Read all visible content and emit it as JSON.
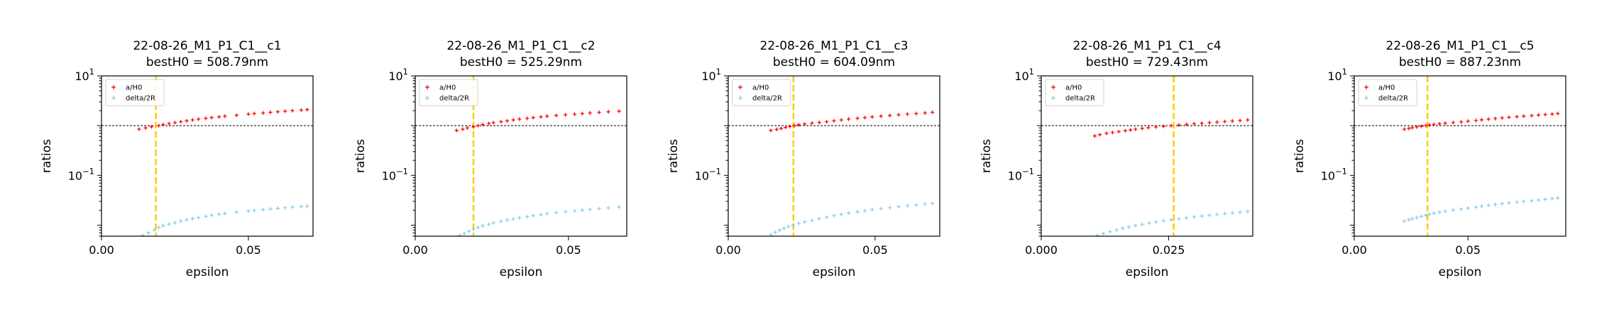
{
  "chart_data": [
    {
      "type": "scatter",
      "title": "22-08-26_M1_P1_C1__c1",
      "subtitle": "bestH0 = 508.79nm",
      "xlabel": "epsilon",
      "ylabel": "ratios",
      "yscale": "log",
      "xlim": [
        0.0,
        0.072
      ],
      "ylim": [
        0.006,
        10
      ],
      "xticks": [
        0.0,
        0.05
      ],
      "xtick_labels": [
        "0.00",
        "0.05"
      ],
      "ytick_labels": [
        {
          "base": "10",
          "exp": "1",
          "value": 10
        },
        {
          "base": "10",
          "exp": "−1",
          "value": 0.1
        }
      ],
      "hline": 1.0,
      "vline": 0.0185,
      "legend": {
        "position": "top-left",
        "entries": [
          "a/H0",
          "delta/2R"
        ]
      },
      "series": [
        {
          "name": "a/H0",
          "color": "#ff0000",
          "marker": "+",
          "x": [
            0.0128,
            0.015,
            0.017,
            0.0195,
            0.021,
            0.023,
            0.025,
            0.027,
            0.029,
            0.031,
            0.033,
            0.0355,
            0.0375,
            0.04,
            0.042,
            0.046,
            0.05,
            0.052,
            0.055,
            0.0575,
            0.06,
            0.0625,
            0.065,
            0.068,
            0.07
          ],
          "y": [
            0.85,
            0.9,
            0.95,
            1.0,
            1.05,
            1.1,
            1.15,
            1.2,
            1.25,
            1.3,
            1.35,
            1.4,
            1.45,
            1.5,
            1.55,
            1.62,
            1.7,
            1.75,
            1.8,
            1.85,
            1.9,
            1.95,
            2.0,
            2.05,
            2.1
          ]
        },
        {
          "name": "delta/2R",
          "color": "#87ceeb",
          "marker": "+",
          "x": [
            0.014,
            0.016,
            0.018,
            0.0195,
            0.021,
            0.023,
            0.025,
            0.027,
            0.029,
            0.031,
            0.033,
            0.0355,
            0.0375,
            0.04,
            0.042,
            0.046,
            0.05,
            0.052,
            0.055,
            0.0575,
            0.06,
            0.0625,
            0.065,
            0.068,
            0.07
          ],
          "y": [
            0.0062,
            0.007,
            0.008,
            0.009,
            0.0098,
            0.0105,
            0.0112,
            0.012,
            0.0128,
            0.0135,
            0.0142,
            0.015,
            0.0158,
            0.0165,
            0.0172,
            0.0182,
            0.0192,
            0.0198,
            0.0205,
            0.0212,
            0.0218,
            0.0224,
            0.023,
            0.0236,
            0.024
          ]
        }
      ]
    },
    {
      "type": "scatter",
      "title": "22-08-26_M1_P1_C1__c2",
      "subtitle": "bestH0 = 525.29nm",
      "xlabel": "epsilon",
      "ylabel": "ratios",
      "yscale": "log",
      "xlim": [
        0.0,
        0.069
      ],
      "ylim": [
        0.006,
        10
      ],
      "xticks": [
        0.0,
        0.05
      ],
      "xtick_labels": [
        "0.00",
        "0.05"
      ],
      "ytick_labels": [
        {
          "base": "10",
          "exp": "1",
          "value": 10
        },
        {
          "base": "10",
          "exp": "−1",
          "value": 0.1
        }
      ],
      "hline": 1.0,
      "vline": 0.019,
      "legend": {
        "position": "top-left",
        "entries": [
          "a/H0",
          "delta/2R"
        ]
      },
      "series": [
        {
          "name": "a/H0",
          "color": "#ff0000",
          "marker": "+",
          "x": [
            0.0135,
            0.0155,
            0.017,
            0.019,
            0.0205,
            0.022,
            0.024,
            0.0255,
            0.028,
            0.03,
            0.032,
            0.034,
            0.0365,
            0.0385,
            0.041,
            0.043,
            0.046,
            0.049,
            0.052,
            0.0545,
            0.057,
            0.06,
            0.063,
            0.0665
          ],
          "y": [
            0.8,
            0.85,
            0.9,
            0.95,
            1.0,
            1.05,
            1.1,
            1.15,
            1.2,
            1.25,
            1.3,
            1.35,
            1.4,
            1.45,
            1.5,
            1.55,
            1.6,
            1.65,
            1.7,
            1.75,
            1.8,
            1.85,
            1.9,
            1.95
          ]
        },
        {
          "name": "delta/2R",
          "color": "#87ceeb",
          "marker": "+",
          "x": [
            0.0145,
            0.016,
            0.0175,
            0.019,
            0.0205,
            0.022,
            0.024,
            0.0255,
            0.028,
            0.03,
            0.032,
            0.034,
            0.0365,
            0.0385,
            0.041,
            0.043,
            0.046,
            0.049,
            0.052,
            0.0545,
            0.057,
            0.06,
            0.063,
            0.0665
          ],
          "y": [
            0.0062,
            0.0068,
            0.0075,
            0.0083,
            0.009,
            0.0097,
            0.0104,
            0.0111,
            0.0119,
            0.0126,
            0.0133,
            0.014,
            0.0148,
            0.0155,
            0.0162,
            0.017,
            0.0178,
            0.0186,
            0.0194,
            0.02,
            0.0207,
            0.0214,
            0.0222,
            0.023
          ]
        }
      ]
    },
    {
      "type": "scatter",
      "title": "22-08-26_M1_P1_C1__c3",
      "subtitle": "bestH0 = 604.09nm",
      "xlabel": "epsilon",
      "ylabel": "ratios",
      "yscale": "log",
      "xlim": [
        0.0,
        0.072
      ],
      "ylim": [
        0.006,
        10
      ],
      "xticks": [
        0.0,
        0.05
      ],
      "xtick_labels": [
        "0.00",
        "0.05"
      ],
      "ytick_labels": [
        {
          "base": "10",
          "exp": "1",
          "value": 10
        },
        {
          "base": "10",
          "exp": "−1",
          "value": 0.1
        }
      ],
      "hline": 1.0,
      "vline": 0.0222,
      "legend": {
        "position": "top-left",
        "entries": [
          "a/H0",
          "delta/2R"
        ]
      },
      "series": [
        {
          "name": "a/H0",
          "color": "#ff0000",
          "marker": "+",
          "x": [
            0.0145,
            0.0165,
            0.018,
            0.0195,
            0.021,
            0.0225,
            0.024,
            0.026,
            0.0285,
            0.031,
            0.0335,
            0.036,
            0.0385,
            0.041,
            0.044,
            0.0465,
            0.049,
            0.052,
            0.055,
            0.058,
            0.061,
            0.064,
            0.067,
            0.0695
          ],
          "y": [
            0.8,
            0.84,
            0.88,
            0.92,
            0.96,
            1.0,
            1.04,
            1.08,
            1.12,
            1.16,
            1.2,
            1.25,
            1.3,
            1.35,
            1.4,
            1.45,
            1.5,
            1.55,
            1.6,
            1.65,
            1.7,
            1.75,
            1.8,
            1.85
          ]
        },
        {
          "name": "delta/2R",
          "color": "#87ceeb",
          "marker": "+",
          "x": [
            0.0145,
            0.016,
            0.0175,
            0.019,
            0.0205,
            0.022,
            0.024,
            0.026,
            0.0285,
            0.031,
            0.0335,
            0.036,
            0.0385,
            0.041,
            0.044,
            0.0465,
            0.049,
            0.052,
            0.055,
            0.058,
            0.061,
            0.064,
            0.067,
            0.0695
          ],
          "y": [
            0.0065,
            0.0072,
            0.0079,
            0.0086,
            0.0093,
            0.01,
            0.0108,
            0.0116,
            0.0125,
            0.0135,
            0.0145,
            0.0155,
            0.0165,
            0.0175,
            0.0185,
            0.0195,
            0.0205,
            0.0215,
            0.0225,
            0.0235,
            0.0245,
            0.0255,
            0.0265,
            0.0275
          ]
        }
      ]
    },
    {
      "type": "scatter",
      "title": "22-08-26_M1_P1_C1__c4",
      "subtitle": "bestH0 = 729.43nm",
      "xlabel": "epsilon",
      "ylabel": "ratios",
      "yscale": "log",
      "xlim": [
        0.0,
        0.0415
      ],
      "ylim": [
        0.006,
        10
      ],
      "xticks": [
        0.0,
        0.025
      ],
      "xtick_labels": [
        "0.000",
        "0.025"
      ],
      "ytick_labels": [
        {
          "base": "10",
          "exp": "1",
          "value": 10
        },
        {
          "base": "10",
          "exp": "−1",
          "value": 0.1
        }
      ],
      "hline": 1.0,
      "vline": 0.026,
      "legend": {
        "position": "top-left",
        "entries": [
          "a/H0",
          "delta/2R"
        ]
      },
      "series": [
        {
          "name": "a/H0",
          "color": "#ff0000",
          "marker": "+",
          "x": [
            0.0105,
            0.0115,
            0.0128,
            0.014,
            0.0152,
            0.0165,
            0.0175,
            0.0185,
            0.0198,
            0.021,
            0.0225,
            0.024,
            0.0255,
            0.027,
            0.0285,
            0.03,
            0.0315,
            0.033,
            0.0345,
            0.036,
            0.0375,
            0.039,
            0.0405
          ],
          "y": [
            0.62,
            0.66,
            0.7,
            0.73,
            0.76,
            0.79,
            0.82,
            0.85,
            0.88,
            0.91,
            0.94,
            0.97,
            1.0,
            1.03,
            1.06,
            1.09,
            1.12,
            1.15,
            1.18,
            1.21,
            1.24,
            1.27,
            1.3
          ]
        },
        {
          "name": "delta/2R",
          "color": "#87ceeb",
          "marker": "+",
          "x": [
            0.011,
            0.0122,
            0.0135,
            0.0148,
            0.016,
            0.0172,
            0.0185,
            0.0198,
            0.0212,
            0.0225,
            0.024,
            0.0255,
            0.027,
            0.0285,
            0.03,
            0.0315,
            0.033,
            0.0345,
            0.036,
            0.0375,
            0.039,
            0.0405
          ],
          "y": [
            0.0062,
            0.0068,
            0.0074,
            0.008,
            0.0086,
            0.0092,
            0.0098,
            0.0104,
            0.011,
            0.0116,
            0.0122,
            0.0128,
            0.0134,
            0.014,
            0.0146,
            0.0152,
            0.0158,
            0.0164,
            0.017,
            0.0176,
            0.0182,
            0.0188
          ]
        }
      ]
    },
    {
      "type": "scatter",
      "title": "22-08-26_M1_P1_C1__c5",
      "subtitle": "bestH0 = 887.23nm",
      "xlabel": "epsilon",
      "ylabel": "ratios",
      "yscale": "log",
      "xlim": [
        0.0,
        0.093
      ],
      "ylim": [
        0.006,
        10
      ],
      "xticks": [
        0.0,
        0.05
      ],
      "xtick_labels": [
        "0.00",
        "0.05"
      ],
      "ytick_labels": [
        {
          "base": "10",
          "exp": "1",
          "value": 10
        },
        {
          "base": "10",
          "exp": "−1",
          "value": 0.1
        }
      ],
      "hline": 1.0,
      "vline": 0.0322,
      "legend": {
        "position": "top-left",
        "entries": [
          "a/H0",
          "delta/2R"
        ]
      },
      "series": [
        {
          "name": "a/H0",
          "color": "#ff0000",
          "marker": "+",
          "x": [
            0.022,
            0.024,
            0.0255,
            0.0275,
            0.0295,
            0.0315,
            0.033,
            0.035,
            0.0375,
            0.04,
            0.0435,
            0.047,
            0.05,
            0.0535,
            0.056,
            0.059,
            0.062,
            0.065,
            0.068,
            0.0715,
            0.0745,
            0.078,
            0.081,
            0.084,
            0.087,
            0.0895
          ],
          "y": [
            0.85,
            0.88,
            0.91,
            0.94,
            0.97,
            1.0,
            1.03,
            1.06,
            1.09,
            1.12,
            1.15,
            1.19,
            1.23,
            1.27,
            1.31,
            1.35,
            1.39,
            1.43,
            1.47,
            1.51,
            1.55,
            1.59,
            1.63,
            1.67,
            1.71,
            1.75
          ]
        },
        {
          "name": "delta/2R",
          "color": "#87ceeb",
          "marker": "+",
          "x": [
            0.022,
            0.024,
            0.0255,
            0.0275,
            0.0295,
            0.0315,
            0.033,
            0.035,
            0.0375,
            0.04,
            0.0435,
            0.047,
            0.05,
            0.0535,
            0.056,
            0.059,
            0.062,
            0.065,
            0.068,
            0.0715,
            0.0745,
            0.078,
            0.081,
            0.084,
            0.087,
            0.0895
          ],
          "y": [
            0.012,
            0.0128,
            0.0135,
            0.0142,
            0.015,
            0.0158,
            0.0166,
            0.0174,
            0.0182,
            0.019,
            0.02,
            0.021,
            0.022,
            0.023,
            0.024,
            0.025,
            0.026,
            0.027,
            0.028,
            0.029,
            0.03,
            0.031,
            0.032,
            0.033,
            0.034,
            0.035
          ]
        }
      ]
    }
  ]
}
